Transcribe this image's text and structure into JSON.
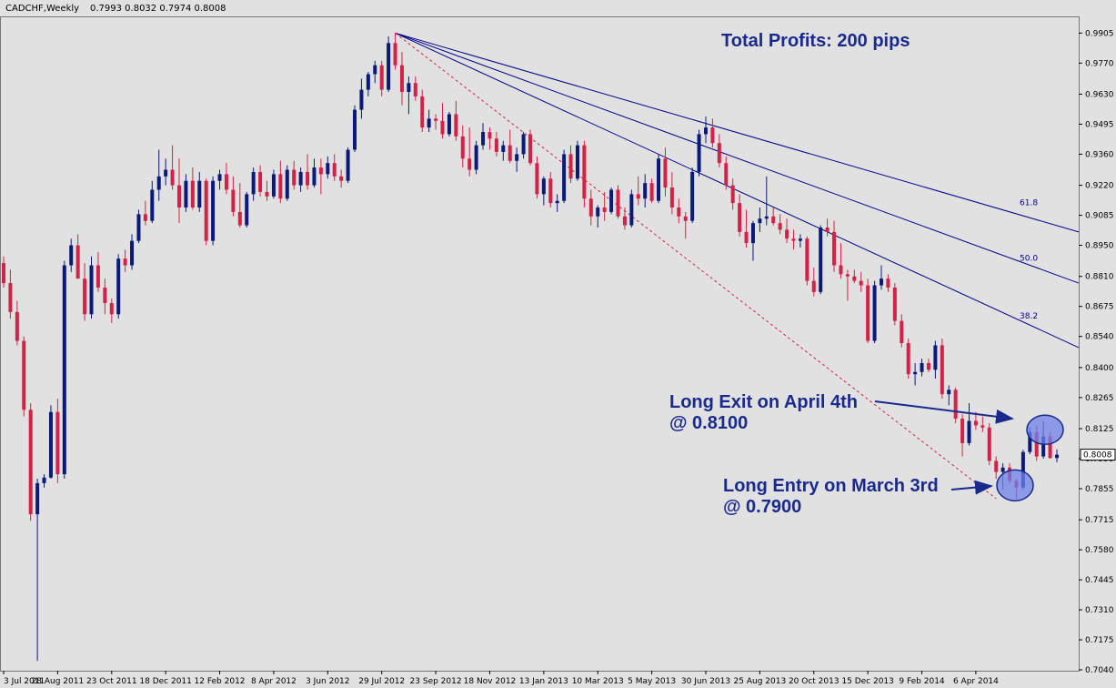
{
  "header": {
    "symbol": "CADCHF,Weekly",
    "ohlc": "0.7993 0.8032 0.7974 0.8008"
  },
  "colors": {
    "background": "#e1e1e1",
    "bull": "#0a1a7a",
    "bear": "#d22248",
    "fan": "#00008b",
    "annotation": "#1a2a8c",
    "marker_fill": "#6f80e8"
  },
  "chart_data": {
    "type": "candlestick",
    "title": "CADCHF,Weekly",
    "ylim": [
      0.7036,
      0.998
    ],
    "y_ticks": [
      "0.9905",
      "0.9770",
      "0.9630",
      "0.9495",
      "0.9360",
      "0.9220",
      "0.9085",
      "0.8950",
      "0.8810",
      "0.8675",
      "0.8540",
      "0.8400",
      "0.8265",
      "0.8125",
      "0.7990",
      "0.7855",
      "0.7715",
      "0.7580",
      "0.7445",
      "0.7310",
      "0.7175",
      "0.7040"
    ],
    "x_ticks": [
      "3 Jul 2011",
      "28 Aug 2011",
      "23 Oct 2011",
      "18 Dec 2011",
      "12 Feb 2012",
      "8 Apr 2012",
      "3 Jun 2012",
      "29 Jul 2012",
      "23 Sep 2012",
      "18 Nov 2012",
      "13 Jan 2013",
      "10 Mar 2013",
      "5 May 2013",
      "30 Jun 2013",
      "25 Aug 2013",
      "20 Oct 2013",
      "15 Dec 2013",
      "9 Feb 2014",
      "6 Apr 2014"
    ],
    "current_price": "0.8008",
    "ohlc": [
      [
        0.887,
        0.89,
        0.876,
        0.878
      ],
      [
        0.878,
        0.884,
        0.862,
        0.865
      ],
      [
        0.865,
        0.87,
        0.85,
        0.852
      ],
      [
        0.852,
        0.854,
        0.818,
        0.821
      ],
      [
        0.821,
        0.824,
        0.771,
        0.774
      ],
      [
        0.774,
        0.79,
        0.708,
        0.788
      ],
      [
        0.788,
        0.792,
        0.786,
        0.7905
      ],
      [
        0.7905,
        0.823,
        0.79,
        0.82
      ],
      [
        0.82,
        0.826,
        0.788,
        0.792
      ],
      [
        0.792,
        0.888,
        0.79,
        0.886
      ],
      [
        0.886,
        0.898,
        0.883,
        0.895
      ],
      [
        0.895,
        0.9,
        0.88,
        0.88
      ],
      [
        0.88,
        0.887,
        0.861,
        0.864
      ],
      [
        0.864,
        0.89,
        0.862,
        0.886
      ],
      [
        0.886,
        0.892,
        0.874,
        0.876
      ],
      [
        0.876,
        0.88,
        0.864,
        0.869
      ],
      [
        0.869,
        0.871,
        0.86,
        0.864
      ],
      [
        0.864,
        0.891,
        0.862,
        0.889
      ],
      [
        0.889,
        0.893,
        0.883,
        0.886
      ],
      [
        0.886,
        0.9,
        0.884,
        0.897
      ],
      [
        0.897,
        0.911,
        0.896,
        0.909
      ],
      [
        0.909,
        0.915,
        0.904,
        0.906
      ],
      [
        0.906,
        0.924,
        0.905,
        0.92
      ],
      [
        0.92,
        0.938,
        0.915,
        0.926
      ],
      [
        0.926,
        0.934,
        0.922,
        0.929
      ],
      [
        0.929,
        0.94,
        0.92,
        0.922
      ],
      [
        0.922,
        0.934,
        0.905,
        0.912
      ],
      [
        0.912,
        0.927,
        0.91,
        0.924
      ],
      [
        0.924,
        0.93,
        0.911,
        0.912
      ],
      [
        0.912,
        0.928,
        0.91,
        0.924
      ],
      [
        0.924,
        0.925,
        0.895,
        0.897
      ],
      [
        0.897,
        0.926,
        0.895,
        0.924
      ],
      [
        0.924,
        0.929,
        0.92,
        0.927
      ],
      [
        0.927,
        0.932,
        0.918,
        0.92
      ],
      [
        0.92,
        0.926,
        0.908,
        0.91
      ],
      [
        0.91,
        0.923,
        0.903,
        0.904
      ],
      [
        0.904,
        0.919,
        0.903,
        0.918
      ],
      [
        0.918,
        0.93,
        0.915,
        0.928
      ],
      [
        0.928,
        0.931,
        0.917,
        0.919
      ],
      [
        0.919,
        0.924,
        0.915,
        0.917
      ],
      [
        0.917,
        0.929,
        0.916,
        0.927
      ],
      [
        0.927,
        0.933,
        0.914,
        0.916
      ],
      [
        0.916,
        0.931,
        0.915,
        0.929
      ],
      [
        0.929,
        0.933,
        0.92,
        0.922
      ],
      [
        0.922,
        0.93,
        0.919,
        0.928
      ],
      [
        0.928,
        0.936,
        0.92,
        0.922
      ],
      [
        0.922,
        0.934,
        0.921,
        0.93
      ],
      [
        0.93,
        0.934,
        0.918,
        0.927
      ],
      [
        0.927,
        0.935,
        0.925,
        0.932
      ],
      [
        0.932,
        0.936,
        0.924,
        0.926
      ],
      [
        0.926,
        0.929,
        0.921,
        0.924
      ],
      [
        0.924,
        0.939,
        0.923,
        0.938
      ],
      [
        0.938,
        0.958,
        0.937,
        0.956
      ],
      [
        0.956,
        0.97,
        0.952,
        0.965
      ],
      [
        0.965,
        0.973,
        0.962,
        0.972
      ],
      [
        0.972,
        0.978,
        0.968,
        0.976
      ],
      [
        0.976,
        0.978,
        0.962,
        0.965
      ],
      [
        0.965,
        0.989,
        0.964,
        0.986
      ],
      [
        0.986,
        0.9905,
        0.974,
        0.976
      ],
      [
        0.976,
        0.982,
        0.958,
        0.964
      ],
      [
        0.964,
        0.971,
        0.954,
        0.968
      ],
      [
        0.968,
        0.971,
        0.96,
        0.962
      ],
      [
        0.962,
        0.965,
        0.946,
        0.948
      ],
      [
        0.948,
        0.956,
        0.946,
        0.952
      ],
      [
        0.952,
        0.954,
        0.947,
        0.951
      ],
      [
        0.951,
        0.959,
        0.943,
        0.945
      ],
      [
        0.945,
        0.955,
        0.944,
        0.954
      ],
      [
        0.954,
        0.96,
        0.942,
        0.944
      ],
      [
        0.944,
        0.949,
        0.93,
        0.934
      ],
      [
        0.934,
        0.948,
        0.926,
        0.929
      ],
      [
        0.929,
        0.942,
        0.927,
        0.94
      ],
      [
        0.94,
        0.95,
        0.938,
        0.946
      ],
      [
        0.946,
        0.948,
        0.938,
        0.943
      ],
      [
        0.943,
        0.946,
        0.935,
        0.937
      ],
      [
        0.937,
        0.942,
        0.933,
        0.94
      ],
      [
        0.94,
        0.947,
        0.932,
        0.933
      ],
      [
        0.933,
        0.939,
        0.928,
        0.936
      ],
      [
        0.936,
        0.946,
        0.934,
        0.945
      ],
      [
        0.945,
        0.947,
        0.931,
        0.932
      ],
      [
        0.932,
        0.935,
        0.916,
        0.918
      ],
      [
        0.918,
        0.926,
        0.913,
        0.925
      ],
      [
        0.925,
        0.928,
        0.912,
        0.914
      ],
      [
        0.914,
        0.918,
        0.91,
        0.915
      ],
      [
        0.915,
        0.938,
        0.914,
        0.936
      ],
      [
        0.936,
        0.94,
        0.923,
        0.925
      ],
      [
        0.925,
        0.942,
        0.924,
        0.94
      ],
      [
        0.94,
        0.942,
        0.912,
        0.916
      ],
      [
        0.916,
        0.92,
        0.904,
        0.908
      ],
      [
        0.908,
        0.913,
        0.903,
        0.912
      ],
      [
        0.912,
        0.919,
        0.906,
        0.91
      ],
      [
        0.91,
        0.921,
        0.909,
        0.92
      ],
      [
        0.92,
        0.922,
        0.907,
        0.908
      ],
      [
        0.908,
        0.912,
        0.902,
        0.904
      ],
      [
        0.904,
        0.92,
        0.903,
        0.918
      ],
      [
        0.918,
        0.926,
        0.913,
        0.916
      ],
      [
        0.916,
        0.927,
        0.912,
        0.923
      ],
      [
        0.923,
        0.925,
        0.914,
        0.915
      ],
      [
        0.915,
        0.936,
        0.914,
        0.934
      ],
      [
        0.934,
        0.939,
        0.917,
        0.921
      ],
      [
        0.921,
        0.928,
        0.909,
        0.912
      ],
      [
        0.912,
        0.916,
        0.905,
        0.908
      ],
      [
        0.908,
        0.91,
        0.898,
        0.906
      ],
      [
        0.906,
        0.93,
        0.905,
        0.928
      ],
      [
        0.928,
        0.947,
        0.926,
        0.945
      ],
      [
        0.945,
        0.953,
        0.941,
        0.948
      ],
      [
        0.948,
        0.952,
        0.939,
        0.941
      ],
      [
        0.941,
        0.945,
        0.93,
        0.932
      ],
      [
        0.932,
        0.935,
        0.92,
        0.922
      ],
      [
        0.922,
        0.925,
        0.911,
        0.914
      ],
      [
        0.914,
        0.918,
        0.899,
        0.901
      ],
      [
        0.901,
        0.911,
        0.894,
        0.896
      ],
      [
        0.896,
        0.906,
        0.888,
        0.905
      ],
      [
        0.905,
        0.912,
        0.901,
        0.907
      ],
      [
        0.907,
        0.926,
        0.904,
        0.908
      ],
      [
        0.908,
        0.912,
        0.904,
        0.905
      ],
      [
        0.905,
        0.909,
        0.9,
        0.902
      ],
      [
        0.902,
        0.907,
        0.896,
        0.898
      ],
      [
        0.898,
        0.902,
        0.893,
        0.897
      ],
      [
        0.897,
        0.9,
        0.894,
        0.898
      ],
      [
        0.898,
        0.899,
        0.877,
        0.879
      ],
      [
        0.879,
        0.885,
        0.872,
        0.874
      ],
      [
        0.874,
        0.904,
        0.873,
        0.903
      ],
      [
        0.903,
        0.907,
        0.899,
        0.901
      ],
      [
        0.901,
        0.906,
        0.883,
        0.886
      ],
      [
        0.886,
        0.896,
        0.88,
        0.882
      ],
      [
        0.882,
        0.884,
        0.87,
        0.881
      ],
      [
        0.881,
        0.884,
        0.878,
        0.879
      ],
      [
        0.879,
        0.883,
        0.874,
        0.877
      ],
      [
        0.877,
        0.88,
        0.851,
        0.852
      ],
      [
        0.852,
        0.879,
        0.851,
        0.877
      ],
      [
        0.877,
        0.886,
        0.875,
        0.88
      ],
      [
        0.88,
        0.882,
        0.874,
        0.876
      ],
      [
        0.876,
        0.878,
        0.859,
        0.861
      ],
      [
        0.861,
        0.864,
        0.849,
        0.851
      ],
      [
        0.851,
        0.853,
        0.835,
        0.837
      ],
      [
        0.837,
        0.842,
        0.832,
        0.838
      ],
      [
        0.838,
        0.844,
        0.836,
        0.842
      ],
      [
        0.842,
        0.844,
        0.838,
        0.839
      ],
      [
        0.839,
        0.852,
        0.835,
        0.85
      ],
      [
        0.85,
        0.853,
        0.826,
        0.828
      ],
      [
        0.828,
        0.832,
        0.823,
        0.83
      ],
      [
        0.83,
        0.831,
        0.815,
        0.817
      ],
      [
        0.817,
        0.819,
        0.8,
        0.806
      ],
      [
        0.806,
        0.824,
        0.805,
        0.816
      ],
      [
        0.816,
        0.82,
        0.812,
        0.814
      ],
      [
        0.814,
        0.818,
        0.811,
        0.813
      ],
      [
        0.813,
        0.815,
        0.796,
        0.798
      ],
      [
        0.798,
        0.8,
        0.79,
        0.793
      ],
      [
        0.793,
        0.797,
        0.785,
        0.795
      ],
      [
        0.795,
        0.797,
        0.788,
        0.789
      ],
      [
        0.789,
        0.79,
        0.781,
        0.786
      ],
      [
        0.786,
        0.803,
        0.785,
        0.802
      ],
      [
        0.802,
        0.813,
        0.801,
        0.811
      ],
      [
        0.811,
        0.814,
        0.798,
        0.8
      ],
      [
        0.8,
        0.816,
        0.799,
        0.809
      ],
      [
        0.809,
        0.811,
        0.799,
        0.7993
      ],
      [
        0.7993,
        0.8032,
        0.7974,
        0.8008
      ]
    ],
    "fan_lines": [
      {
        "level": "61.8"
      },
      {
        "level": "50.0"
      },
      {
        "level": "38.2"
      }
    ],
    "annotations": {
      "total": "Total Profits: 200 pips",
      "exit_line1": "Long Exit on April 4th",
      "exit_line2": "@ 0.8100",
      "entry_line1": "Long Entry on March 3rd",
      "entry_line2": "@ 0.7900"
    }
  }
}
